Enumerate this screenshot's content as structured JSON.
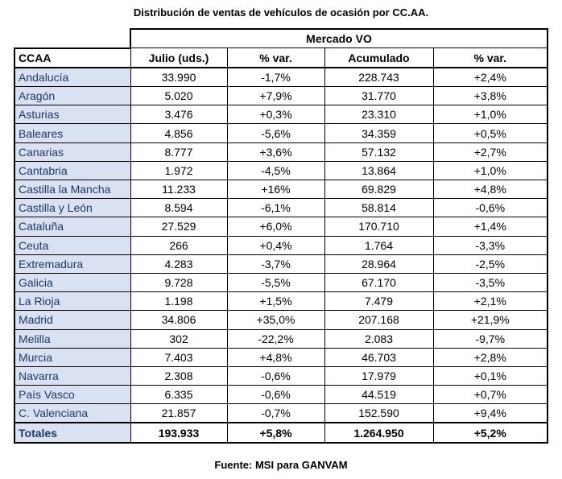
{
  "title": "Distribución de ventas de vehículos de ocasión por CC.AA.",
  "market_label": "Mercado VO",
  "headers": {
    "region": "CCAA",
    "july": "Julio (uds.)",
    "july_var": "% var.",
    "cumulative": "Acumulado",
    "cumulative_var": "% var."
  },
  "rows": [
    {
      "region": "Andalucía",
      "july": "33.990",
      "july_var": "-1,7%",
      "cumulative": "228.743",
      "cumulative_var": "+2,4%"
    },
    {
      "region": "Aragón",
      "july": "5.020",
      "july_var": "+7,9%",
      "cumulative": "31.770",
      "cumulative_var": "+3,8%"
    },
    {
      "region": "Asturias",
      "july": "3.476",
      "july_var": "+0,3%",
      "cumulative": "23.310",
      "cumulative_var": "+1,0%"
    },
    {
      "region": "Baleares",
      "july": "4.856",
      "july_var": "-5,6%",
      "cumulative": "34.359",
      "cumulative_var": "+0,5%"
    },
    {
      "region": "Canarias",
      "july": "8.777",
      "july_var": "+3,6%",
      "cumulative": "57.132",
      "cumulative_var": "+2,7%"
    },
    {
      "region": "Cantabria",
      "july": "1.972",
      "july_var": "-4,5%",
      "cumulative": "13.864",
      "cumulative_var": "+1,0%"
    },
    {
      "region": "Castilla la Mancha",
      "july": "11.233",
      "july_var": "+16%",
      "cumulative": "69.829",
      "cumulative_var": "+4,8%"
    },
    {
      "region": "Castilla y León",
      "july": "8.594",
      "july_var": "-6,1%",
      "cumulative": "58.814",
      "cumulative_var": "-0,6%"
    },
    {
      "region": "Cataluña",
      "july": "27.529",
      "july_var": "+6,0%",
      "cumulative": "170.710",
      "cumulative_var": "+1,4%"
    },
    {
      "region": "Ceuta",
      "july": "266",
      "july_var": "+0,4%",
      "cumulative": "1.764",
      "cumulative_var": "-3,3%"
    },
    {
      "region": "Extremadura",
      "july": "4.283",
      "july_var": "-3,7%",
      "cumulative": "28.964",
      "cumulative_var": "-2,5%"
    },
    {
      "region": "Galicia",
      "july": "9.728",
      "july_var": "-5,5%",
      "cumulative": "67.170",
      "cumulative_var": "-3,5%"
    },
    {
      "region": "La Rioja",
      "july": "1.198",
      "july_var": "+1,5%",
      "cumulative": "7.479",
      "cumulative_var": "+2,1%"
    },
    {
      "region": "Madrid",
      "july": "34.806",
      "july_var": "+35,0%",
      "cumulative": "207.168",
      "cumulative_var": "+21,9%"
    },
    {
      "region": "Melilla",
      "july": "302",
      "july_var": "-22,2%",
      "cumulative": "2.083",
      "cumulative_var": "-9,7%"
    },
    {
      "region": "Murcia",
      "july": "7.403",
      "july_var": "+4,8%",
      "cumulative": "46.703",
      "cumulative_var": "+2,8%"
    },
    {
      "region": "Navarra",
      "july": "2.308",
      "july_var": "-0,6%",
      "cumulative": "17.979",
      "cumulative_var": "+0,1%"
    },
    {
      "region": "País Vasco",
      "july": "6.335",
      "july_var": "-0,6%",
      "cumulative": "44.519",
      "cumulative_var": "+0,7%"
    },
    {
      "region": "C. Valenciana",
      "july": "21.857",
      "july_var": "-0,7%",
      "cumulative": "152.590",
      "cumulative_var": "+9,4%"
    }
  ],
  "totals": {
    "label": "Totales",
    "july": "193.933",
    "july_var": "+5,8%",
    "cumulative": "1.264.950",
    "cumulative_var": "+5,2%"
  },
  "source": "Fuente: MSI para GANVAM",
  "colors": {
    "region_fill": "#d9e1f2",
    "region_text": "#1f3864"
  }
}
